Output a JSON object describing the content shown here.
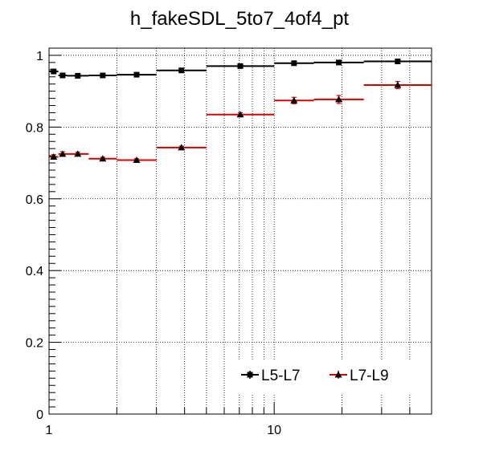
{
  "chart_data": {
    "type": "scatter",
    "title": "h_fakeSDL_5to7_4of4_pt",
    "xlabel": "",
    "ylabel": "",
    "x_scale": "log",
    "xlim": [
      1,
      50
    ],
    "ylim": [
      0,
      1.02
    ],
    "grid": true,
    "x_tick_labels": [
      {
        "value": 1,
        "label": "1"
      },
      {
        "value": 10,
        "label": "10"
      }
    ],
    "y_tick_labels": [
      {
        "value": 0,
        "label": "0"
      },
      {
        "value": 0.2,
        "label": "0.2"
      },
      {
        "value": 0.4,
        "label": "0.4"
      },
      {
        "value": 0.6,
        "label": "0.6"
      },
      {
        "value": 0.8,
        "label": "0.8"
      },
      {
        "value": 1,
        "label": "1"
      }
    ],
    "bin_edges": [
      1,
      1.1,
      1.2,
      1.5,
      2,
      3,
      5,
      10,
      15,
      25,
      50
    ],
    "series": [
      {
        "name": "L5-L7",
        "color": "#000000",
        "marker": "square",
        "values": [
          0.955,
          0.944,
          0.943,
          0.944,
          0.946,
          0.958,
          0.97,
          0.978,
          0.98,
          0.983
        ],
        "errors": [
          0.004,
          0.004,
          0.003,
          0.003,
          0.003,
          0.003,
          0.004,
          0.005,
          0.006,
          0.006
        ]
      },
      {
        "name": "L7-L9",
        "color": "#d40000",
        "marker": "triangle",
        "values": [
          0.717,
          0.725,
          0.725,
          0.712,
          0.708,
          0.743,
          0.835,
          0.874,
          0.877,
          0.917
        ],
        "errors": [
          0.006,
          0.006,
          0.005,
          0.004,
          0.004,
          0.004,
          0.005,
          0.009,
          0.011,
          0.01
        ]
      }
    ],
    "legend_position": "bottom-right"
  }
}
